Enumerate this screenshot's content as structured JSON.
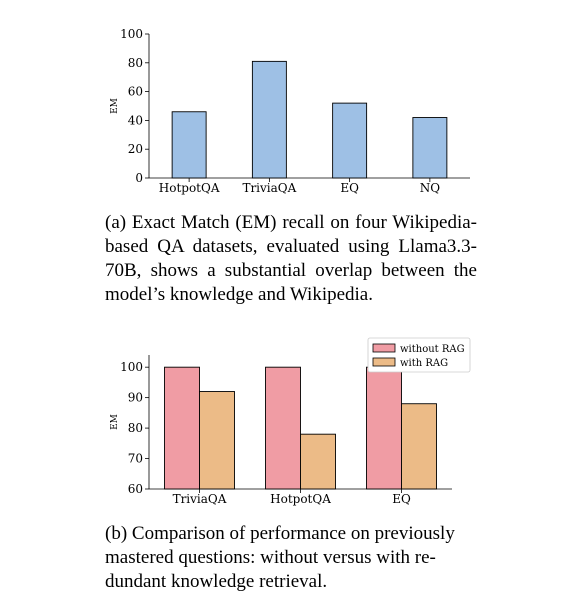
{
  "chart_data": [
    {
      "type": "bar",
      "categories": [
        "HotpotQA",
        "TriviaQA",
        "EQ",
        "NQ"
      ],
      "values": [
        46,
        81,
        52,
        42
      ],
      "xlabel": "",
      "ylabel": "EM",
      "ylim": [
        0,
        100
      ],
      "yticks": [
        0,
        20,
        40,
        60,
        80,
        100
      ],
      "colors": [
        "#9ec0e5"
      ],
      "grid": false
    },
    {
      "type": "bar",
      "categories": [
        "TriviaQA",
        "HotpotQA",
        "EQ"
      ],
      "series": [
        {
          "name": "without RAG",
          "values": [
            100,
            100,
            100
          ],
          "color": "#f09ca4"
        },
        {
          "name": "with RAG",
          "values": [
            92,
            78,
            88
          ],
          "color": "#ecbb87"
        }
      ],
      "xlabel": "",
      "ylabel": "EM",
      "ylim": [
        60,
        104
      ],
      "yticks": [
        60,
        70,
        80,
        90,
        100
      ],
      "legend": "top-right",
      "grid": false
    }
  ],
  "captions": {
    "a": "(a) Exact Match (EM) recall on four Wikipedia-based QA datasets, evaluated us­ing Llama3.3-70B, shows a substantial over­lap between the model’s knowledge and Wikipedia.",
    "b": "(b) Comparison of performance on previously mastered questions: without versus with re­dundant knowledge retrieval."
  }
}
